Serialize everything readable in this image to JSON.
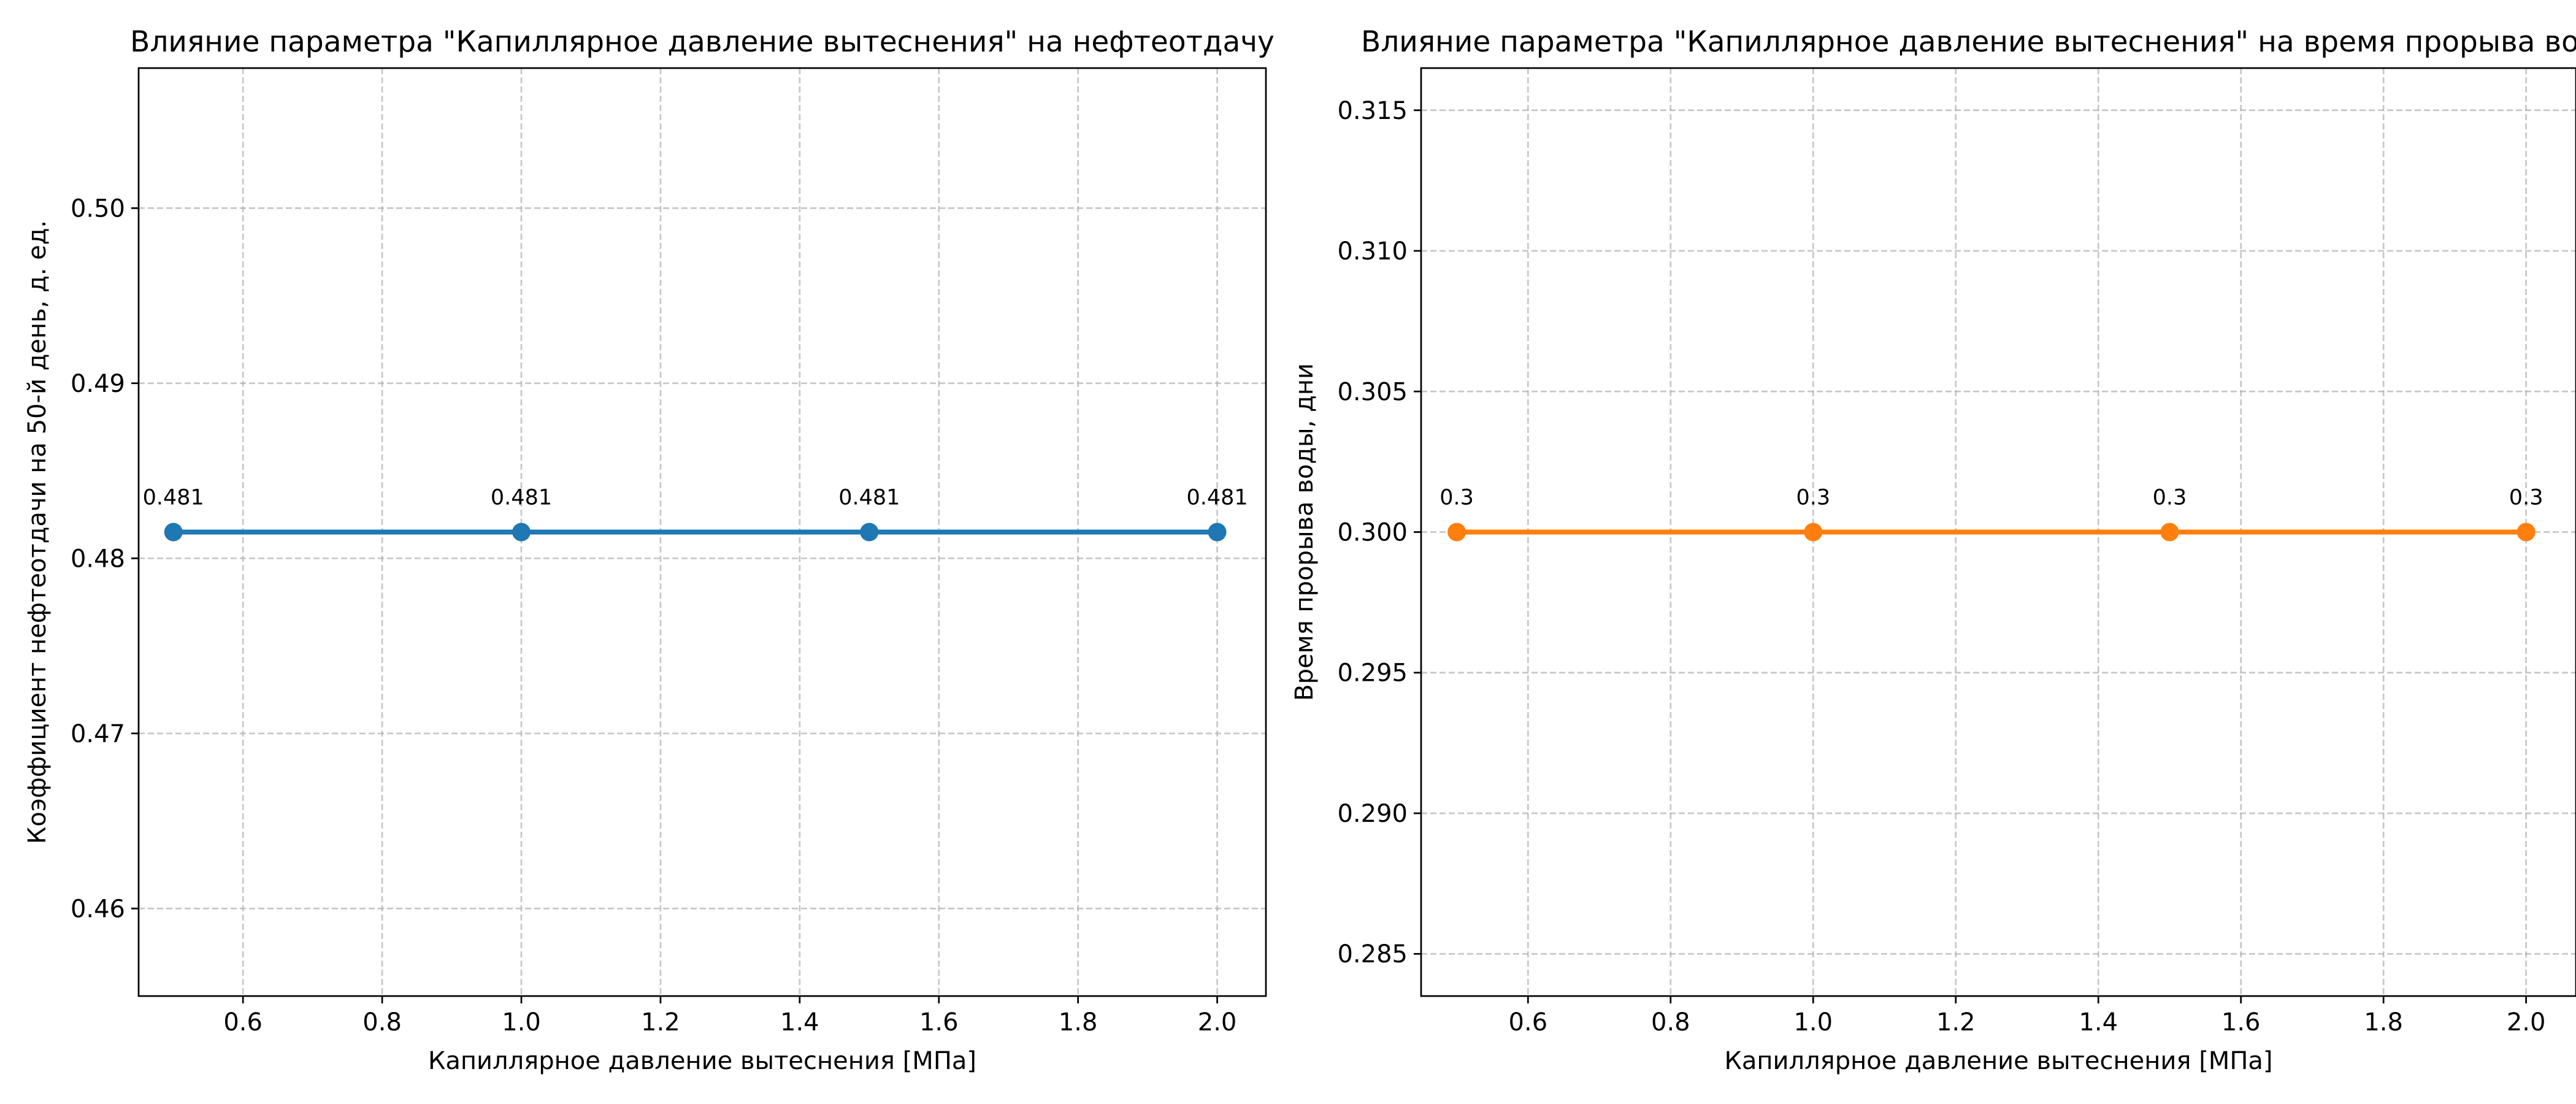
{
  "chart_data": [
    {
      "type": "line",
      "title": "Влияние параметра \"Капиллярное давление вытеснения\" на нефтеотдачу",
      "xlabel": "Капиллярное давление вытеснения [МПа]",
      "ylabel": "Коэффициент нефтеотдачи на 50-й день, д. ед.",
      "xlim": [
        0.45,
        2.07
      ],
      "ylim": [
        0.455,
        0.508
      ],
      "xticks": [
        0.6,
        0.8,
        1.0,
        1.2,
        1.4,
        1.6,
        1.8,
        2.0
      ],
      "xtick_labels": [
        "0.6",
        "0.8",
        "1.0",
        "1.2",
        "1.4",
        "1.6",
        "1.8",
        "2.0"
      ],
      "yticks": [
        0.46,
        0.47,
        0.48,
        0.49,
        0.5
      ],
      "ytick_labels": [
        "0.46",
        "0.47",
        "0.48",
        "0.49",
        "0.50"
      ],
      "grid": true,
      "color": "#1f77b4",
      "x": [
        0.5,
        1.0,
        1.5,
        2.0
      ],
      "y": [
        0.4815,
        0.4815,
        0.4815,
        0.4815
      ],
      "data_labels": [
        "0.481",
        "0.481",
        "0.481",
        "0.481"
      ]
    },
    {
      "type": "line",
      "title": "Влияние параметра \"Капиллярное давление вытеснения\" на время прорыва воды",
      "xlabel": "Капиллярное давление вытеснения [МПа]",
      "ylabel": "Время прорыва воды, дни",
      "xlim": [
        0.45,
        2.07
      ],
      "ylim": [
        0.2835,
        0.3165
      ],
      "xticks": [
        0.6,
        0.8,
        1.0,
        1.2,
        1.4,
        1.6,
        1.8,
        2.0
      ],
      "xtick_labels": [
        "0.6",
        "0.8",
        "1.0",
        "1.2",
        "1.4",
        "1.6",
        "1.8",
        "2.0"
      ],
      "yticks": [
        0.285,
        0.29,
        0.295,
        0.3,
        0.305,
        0.31,
        0.315
      ],
      "ytick_labels": [
        "0.285",
        "0.290",
        "0.295",
        "0.300",
        "0.305",
        "0.310",
        "0.315"
      ],
      "grid": true,
      "color": "#ff7f0e",
      "x": [
        0.5,
        1.0,
        1.5,
        2.0
      ],
      "y": [
        0.3,
        0.3,
        0.3,
        0.3
      ],
      "data_labels": [
        "0.3",
        "0.3",
        "0.3",
        "0.3"
      ]
    }
  ]
}
